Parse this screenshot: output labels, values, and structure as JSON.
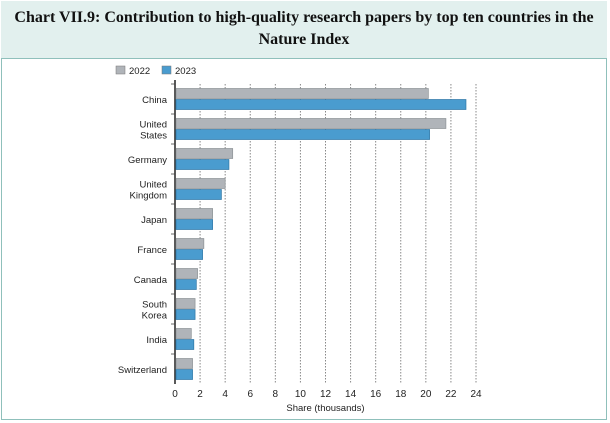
{
  "chart_data": {
    "type": "bar",
    "orientation": "horizontal",
    "title": "Chart VII.9: Contribution to high-quality research papers by top ten countries in the Nature Index",
    "title_lines": [
      "Chart VII.9: Contribution to high-quality research papers by top ten countries in the",
      "Nature Index"
    ],
    "categories": [
      "China",
      "United States",
      "Germany",
      "United Kingdom",
      "Japan",
      "France",
      "Canada",
      "South Korea",
      "India",
      "Switzerland"
    ],
    "category_lines": [
      [
        "China"
      ],
      [
        "United",
        "States"
      ],
      [
        "Germany"
      ],
      [
        "United",
        "Kingdom"
      ],
      [
        "Japan"
      ],
      [
        "France"
      ],
      [
        "Canada"
      ],
      [
        "South",
        "Korea"
      ],
      [
        "India"
      ],
      [
        "Switzerland"
      ]
    ],
    "series": [
      {
        "name": "2022",
        "color": "#b0b4b9",
        "values": [
          20.2,
          21.6,
          4.6,
          4.0,
          3.0,
          2.3,
          1.8,
          1.6,
          1.3,
          1.4
        ]
      },
      {
        "name": "2023",
        "color": "#4a9ccf",
        "values": [
          23.2,
          20.3,
          4.3,
          3.7,
          3.0,
          2.2,
          1.7,
          1.6,
          1.5,
          1.4
        ]
      }
    ],
    "xlabel": "Share (thousands)",
    "ylabel": "",
    "xlim": [
      0,
      24
    ],
    "xticks": [
      0,
      2,
      4,
      6,
      8,
      10,
      12,
      14,
      16,
      18,
      20,
      22,
      24
    ],
    "grid": "vertical dotted",
    "legend_position": "top-left"
  }
}
